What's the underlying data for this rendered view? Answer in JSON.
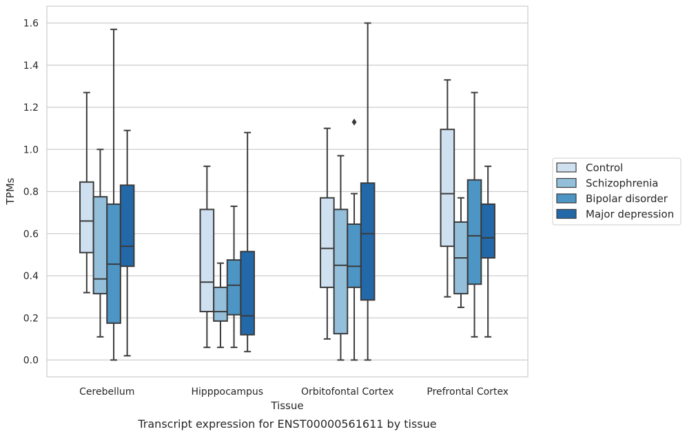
{
  "chart_data": {
    "type": "box",
    "caption": "Transcript expression for ENST00000561611 by tissue",
    "xlabel": "Tissue",
    "ylabel": "TPMs",
    "ylim": [
      -0.08,
      1.68
    ],
    "yticks": [
      0.0,
      0.2,
      0.4,
      0.6,
      0.8,
      1.0,
      1.2,
      1.4,
      1.6
    ],
    "ytick_labels": [
      "0.0",
      "0.2",
      "0.4",
      "0.6",
      "0.8",
      "1.0",
      "1.2",
      "1.4",
      "1.6"
    ],
    "grid": "horizontal",
    "legend_position": "right",
    "categories": [
      "Cerebellum",
      "Hipppocampus",
      "Orbitofontal Cortex",
      "Prefrontal Cortex"
    ],
    "series": [
      {
        "name": "Control",
        "color": "#cfe0f0",
        "boxes": [
          {
            "whislo": 0.32,
            "q1": 0.51,
            "med": 0.66,
            "q3": 0.845,
            "whishi": 1.27,
            "fliers": []
          },
          {
            "whislo": 0.06,
            "q1": 0.23,
            "med": 0.37,
            "q3": 0.715,
            "whishi": 0.92,
            "fliers": []
          },
          {
            "whislo": 0.1,
            "q1": 0.345,
            "med": 0.53,
            "q3": 0.77,
            "whishi": 1.1,
            "fliers": []
          },
          {
            "whislo": 0.3,
            "q1": 0.54,
            "med": 0.79,
            "q3": 1.095,
            "whishi": 1.33,
            "fliers": []
          }
        ]
      },
      {
        "name": "Schizophrenia",
        "color": "#93bfdb",
        "boxes": [
          {
            "whislo": 0.11,
            "q1": 0.315,
            "med": 0.385,
            "q3": 0.775,
            "whishi": 1.0,
            "fliers": []
          },
          {
            "whislo": 0.06,
            "q1": 0.185,
            "med": 0.23,
            "q3": 0.345,
            "whishi": 0.46,
            "fliers": []
          },
          {
            "whislo": 0.0,
            "q1": 0.125,
            "med": 0.45,
            "q3": 0.715,
            "whishi": 0.97,
            "fliers": []
          },
          {
            "whislo": 0.25,
            "q1": 0.315,
            "med": 0.485,
            "q3": 0.655,
            "whishi": 0.77,
            "fliers": []
          }
        ]
      },
      {
        "name": "Bipolar disorder",
        "color": "#4d95c5",
        "boxes": [
          {
            "whislo": 0.0,
            "q1": 0.175,
            "med": 0.455,
            "q3": 0.74,
            "whishi": 1.57,
            "fliers": []
          },
          {
            "whislo": 0.06,
            "q1": 0.215,
            "med": 0.355,
            "q3": 0.475,
            "whishi": 0.73,
            "fliers": []
          },
          {
            "whislo": 0.0,
            "q1": 0.345,
            "med": 0.445,
            "q3": 0.645,
            "whishi": 0.79,
            "fliers": [
              1.13
            ]
          },
          {
            "whislo": 0.11,
            "q1": 0.36,
            "med": 0.59,
            "q3": 0.855,
            "whishi": 1.27,
            "fliers": []
          }
        ]
      },
      {
        "name": "Major depression",
        "color": "#2369a9",
        "boxes": [
          {
            "whislo": 0.02,
            "q1": 0.445,
            "med": 0.54,
            "q3": 0.83,
            "whishi": 1.09,
            "fliers": []
          },
          {
            "whislo": 0.04,
            "q1": 0.12,
            "med": 0.21,
            "q3": 0.515,
            "whishi": 1.08,
            "fliers": []
          },
          {
            "whislo": 0.0,
            "q1": 0.285,
            "med": 0.6,
            "q3": 0.84,
            "whishi": 1.6,
            "fliers": []
          },
          {
            "whislo": 0.11,
            "q1": 0.485,
            "med": 0.58,
            "q3": 0.74,
            "whishi": 0.92,
            "fliers": []
          }
        ]
      }
    ]
  }
}
